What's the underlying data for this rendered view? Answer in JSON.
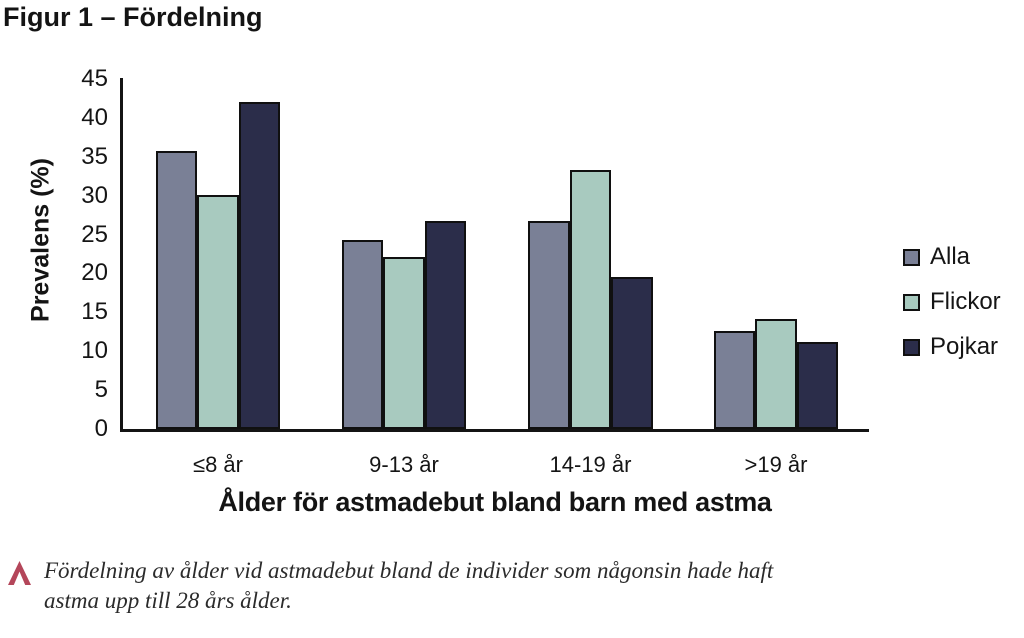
{
  "figure": {
    "title": "Figur 1 – Fördelning"
  },
  "chart_data": {
    "type": "bar",
    "title": "Figur 1 – Fördelning",
    "categories": [
      "≤8 år",
      "9-13 år",
      "14-19 år",
      ">19 år"
    ],
    "series": [
      {
        "name": "Alla",
        "color": "#7a8096",
        "values": [
          35.8,
          24.3,
          26.7,
          12.6
        ]
      },
      {
        "name": "Flickor",
        "color": "#a8cabf",
        "values": [
          30.1,
          22.1,
          33.3,
          14.1
        ]
      },
      {
        "name": "Pojkar",
        "color": "#2b2d4a",
        "values": [
          42.0,
          26.7,
          19.6,
          11.2
        ]
      }
    ],
    "xlabel": "Ålder för astmadebut bland barn med astma",
    "ylabel": "Prevalens (%)",
    "ylim": [
      0,
      45
    ],
    "yticks": [
      0,
      5,
      10,
      15,
      20,
      25,
      30,
      35,
      40,
      45
    ],
    "grid": false,
    "legend_position": "right",
    "bar_border_color": "#101010",
    "axis_color": "#141414"
  },
  "caption": {
    "marker": "caret-up",
    "marker_color": "#b4465a",
    "line1": "Fördelning av ålder vid astmadebut bland de individer som någonsin hade haft",
    "line2": "astma upp till 28 års ålder."
  }
}
